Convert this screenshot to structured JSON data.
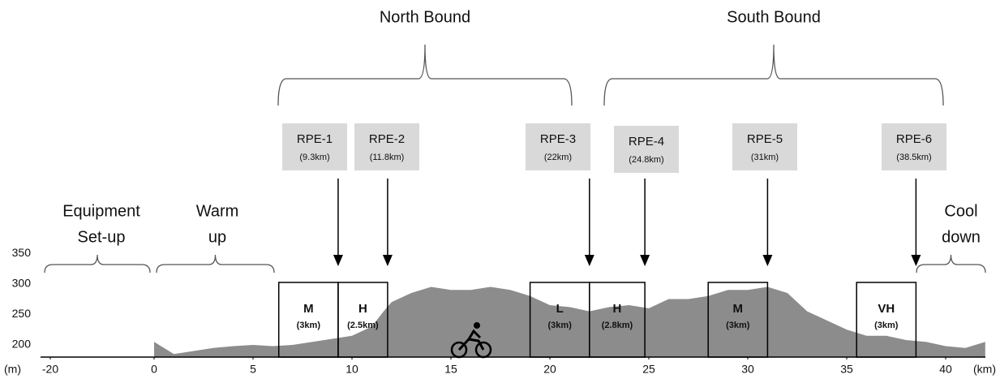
{
  "directions": [
    {
      "label": "North Bound"
    },
    {
      "label": "South Bound"
    }
  ],
  "phases": [
    {
      "lines": [
        "Equipment",
        "Set-up"
      ]
    },
    {
      "lines": [
        "Warm",
        "up"
      ]
    },
    {
      "lines": [
        "Cool",
        "down"
      ]
    }
  ],
  "rpe": [
    {
      "label": "RPE-1",
      "distance": "(9.3km)",
      "km": 9.3
    },
    {
      "label": "RPE-2",
      "distance": "(11.8km)",
      "km": 11.8
    },
    {
      "label": "RPE-3",
      "distance": "(22km)",
      "km": 22
    },
    {
      "label": "RPE-4",
      "distance": "(24.8km)",
      "km": 24.8
    },
    {
      "label": "RPE-5",
      "distance": "(31km)",
      "km": 31
    },
    {
      "label": "RPE-6",
      "distance": "(38.5km)",
      "km": 38.5
    }
  ],
  "intervals": [
    {
      "intensity": "M",
      "length": "(3km)",
      "start": 6.3,
      "end": 9.3
    },
    {
      "intensity": "H",
      "length": "(2.5km)",
      "start": 9.3,
      "end": 11.8
    },
    {
      "intensity": "L",
      "length": "(3km)",
      "start": 19,
      "end": 22
    },
    {
      "intensity": "H",
      "length": "(2.8km)",
      "start": 22,
      "end": 24.8
    },
    {
      "intensity": "M",
      "length": "(3km)",
      "start": 28,
      "end": 31
    },
    {
      "intensity": "VH",
      "length": "(3km)",
      "start": 35.5,
      "end": 38.5
    }
  ],
  "y_axis": {
    "unit": "(m)",
    "ticks": [
      200,
      250,
      300,
      350
    ]
  },
  "x_axis": {
    "unit": "(km)",
    "ticks": [
      -20,
      0,
      5,
      10,
      15,
      20,
      25,
      30,
      35,
      40
    ]
  },
  "profile": {
    "x": [
      0,
      0.5,
      1,
      2,
      3,
      4,
      5,
      6,
      7,
      8,
      9,
      10,
      11,
      11.6,
      12,
      13,
      14,
      15,
      16,
      17,
      18,
      19,
      20,
      21,
      22,
      23,
      24,
      25,
      26,
      27,
      28,
      29,
      30,
      31,
      32,
      33,
      34,
      35,
      36,
      37,
      38,
      39,
      40,
      41,
      42
    ],
    "y": [
      205,
      195,
      185,
      190,
      195,
      198,
      200,
      198,
      200,
      205,
      210,
      215,
      230,
      255,
      270,
      285,
      295,
      290,
      290,
      295,
      290,
      280,
      265,
      262,
      255,
      262,
      265,
      260,
      275,
      275,
      280,
      290,
      290,
      295,
      285,
      255,
      240,
      225,
      215,
      215,
      208,
      205,
      198,
      195,
      205
    ]
  }
}
